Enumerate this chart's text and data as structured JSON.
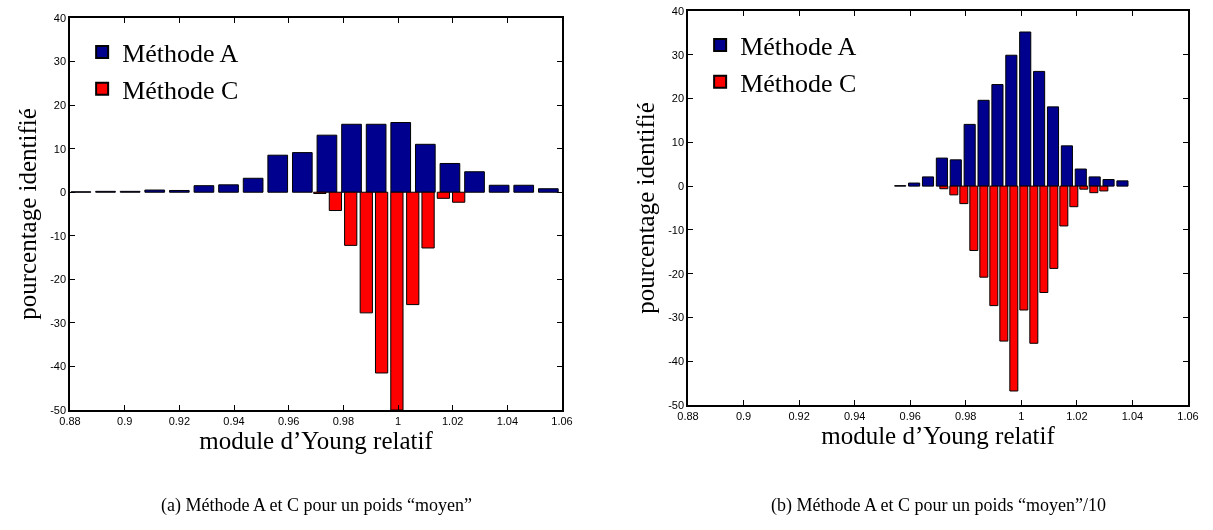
{
  "chart_data": [
    {
      "type": "bar",
      "xlabel": "module d’Young relatif",
      "ylabel": "pourcentage identifié",
      "annotations": [
        "(a) Méthode A et C pour un poids “moyen”"
      ],
      "legend": "top left",
      "xlim": [
        0.88,
        1.06
      ],
      "xticks": [
        0.88,
        0.9,
        0.92,
        0.94,
        0.96,
        0.98,
        1,
        1.02,
        1.04,
        1.06
      ],
      "ylim": [
        -50,
        40
      ],
      "yticks": [
        -50,
        -40,
        -30,
        -20,
        -10,
        0,
        10,
        20,
        30,
        40
      ],
      "series": [
        {
          "name": "Méthode A",
          "color": "#00008f",
          "x": [
            0.884,
            0.893,
            0.902,
            0.911,
            0.92,
            0.929,
            0.938,
            0.947,
            0.956,
            0.965,
            0.974,
            0.983,
            0.992,
            1.001,
            1.01,
            1.019,
            1.028,
            1.037,
            1.046,
            1.055
          ],
          "values": [
            0.1,
            0.2,
            0.2,
            0.5,
            0.4,
            1.5,
            1.7,
            3.2,
            8.5,
            9.1,
            13.1,
            15.6,
            15.6,
            16,
            11,
            6.6,
            4.7,
            1.6,
            1.6,
            0.8
          ]
        },
        {
          "name": "Méthode C",
          "color": "#ff0000",
          "x": [
            0.9714,
            0.9771,
            0.9827,
            0.9884,
            0.994,
            0.9996,
            1.0054,
            1.011,
            1.0166,
            1.0222
          ],
          "values": [
            -0.3,
            -4.2,
            -12.2,
            -27.7,
            -41.5,
            -50,
            -25.8,
            -12.8,
            -1.4,
            -2.3
          ]
        }
      ]
    },
    {
      "type": "bar",
      "xlabel": "module d’Young relatif",
      "ylabel": "pourcentage identifié",
      "annotations": [
        "(b) Méthode A et C pour un poids “moyen”/10"
      ],
      "legend": "top left",
      "xlim": [
        0.88,
        1.06
      ],
      "xticks": [
        0.88,
        0.9,
        0.92,
        0.94,
        0.96,
        0.98,
        1,
        1.02,
        1.04,
        1.06
      ],
      "ylim": [
        -50,
        40
      ],
      "yticks": [
        -50,
        -40,
        -30,
        -20,
        -10,
        0,
        10,
        20,
        30,
        40
      ],
      "series": [
        {
          "name": "Méthode A",
          "color": "#00008f",
          "x": [
            0.9564,
            0.9614,
            0.9664,
            0.9714,
            0.9764,
            0.9814,
            0.9864,
            0.9914,
            0.9964,
            1.0014,
            1.0064,
            1.0114,
            1.0164,
            1.0214,
            1.0264,
            1.0314,
            1.0364
          ],
          "values": [
            0.1,
            0.7,
            2.1,
            6.4,
            6.0,
            14.1,
            19.6,
            23.2,
            29.9,
            35.2,
            26.2,
            18.1,
            9.2,
            3.9,
            2.1,
            1.5,
            1.2
          ]
        },
        {
          "name": "Méthode C",
          "color": "#ff0000",
          "x": [
            0.9721,
            0.9757,
            0.9793,
            0.9829,
            0.9865,
            0.9901,
            0.9937,
            0.9973,
            1.0009,
            1.0045,
            1.0081,
            1.0117,
            1.0153,
            1.0189,
            1.0225,
            1.0261,
            1.0297
          ],
          "values": [
            -0.6,
            -2.0,
            -4.0,
            -14.7,
            -20.8,
            -27.3,
            -35.4,
            -46.8,
            -28.3,
            -35.9,
            -24.3,
            -18.8,
            -9.1,
            -4.7,
            -0.7,
            -1.5,
            -1.1
          ]
        }
      ]
    }
  ]
}
